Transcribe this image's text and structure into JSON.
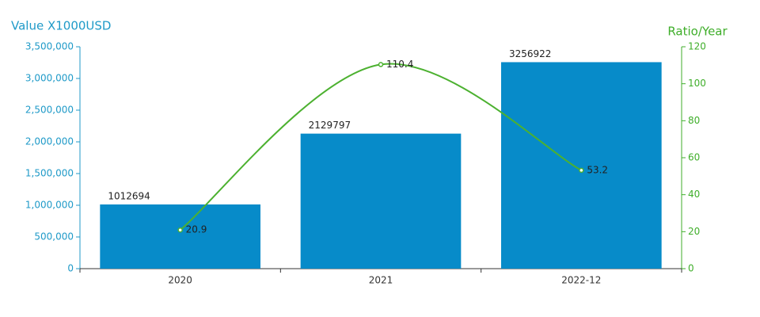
{
  "chart_data": {
    "type": "combo",
    "ylabel": "Value X1000USD",
    "y2label": "Ratio/Year",
    "categories": [
      "2020",
      "2021",
      "2022-12"
    ],
    "series": [
      {
        "type": "bar",
        "color": "#078bc9",
        "values": [
          1012694,
          2129797,
          3256922
        ]
      },
      {
        "type": "line",
        "color": "#4cb130",
        "axis": "y2",
        "values": [
          20.9,
          110.4,
          53.2
        ]
      }
    ],
    "ylim": [
      0,
      3500000
    ],
    "yticks": [
      0,
      {
        "value": 500000,
        "label": "500,000"
      },
      {
        "value": 1000000,
        "label": "1,000,000"
      },
      {
        "value": 1500000,
        "label": "1,500,000"
      },
      {
        "value": 2000000,
        "label": "2,000,000"
      },
      {
        "value": 2500000,
        "label": "2,500,000"
      },
      {
        "value": 3000000,
        "label": "3,000,000"
      },
      {
        "value": 3500000,
        "label": "3,500,000"
      }
    ],
    "y2lim": [
      0,
      120
    ],
    "y2ticks": [
      0,
      20,
      40,
      60,
      80,
      100,
      120
    ],
    "ycolor": "#1f9ac8",
    "y2color": "#3fae2a"
  }
}
